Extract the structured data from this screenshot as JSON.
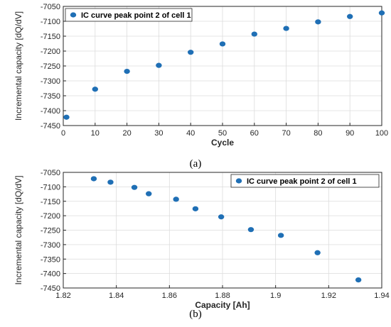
{
  "chart_data": [
    {
      "type": "scatter",
      "panel_caption": "(a)",
      "xlabel": "Cycle",
      "ylabel": "Incremental capacity [dQ/dV]",
      "xlim": [
        0,
        100
      ],
      "ylim": [
        -7450,
        -7050
      ],
      "xticks": [
        0,
        10,
        20,
        30,
        40,
        50,
        60,
        70,
        80,
        90,
        100
      ],
      "yticks": [
        -7050,
        -7100,
        -7150,
        -7200,
        -7250,
        -7300,
        -7350,
        -7400,
        -7450
      ],
      "grid": true,
      "legend_position": "top-left",
      "series": [
        {
          "name": "IC curve peak point 2 of cell 1",
          "color": "#1f6fb5",
          "x": [
            1,
            10,
            20,
            30,
            40,
            50,
            60,
            70,
            80,
            90,
            100
          ],
          "y": [
            -7422,
            -7328,
            -7268,
            -7248,
            -7204,
            -7176,
            -7143,
            -7124,
            -7102,
            -7084,
            -7072
          ]
        }
      ]
    },
    {
      "type": "scatter",
      "panel_caption": "(b)",
      "xlabel": "Capacity [Ah]",
      "ylabel": "Incremental capacity [dQ/dV]",
      "xlim": [
        1.82,
        1.94
      ],
      "ylim": [
        -7450,
        -7050
      ],
      "xticks": [
        1.82,
        1.84,
        1.86,
        1.88,
        1.9,
        1.92,
        1.94
      ],
      "yticks": [
        -7050,
        -7100,
        -7150,
        -7200,
        -7250,
        -7300,
        -7350,
        -7400,
        -7450
      ],
      "grid": true,
      "legend_position": "top-right",
      "series": [
        {
          "name": "IC curve peak point 2 of cell 1",
          "color": "#1f6fb5",
          "x": [
            1.8315,
            1.8378,
            1.8468,
            1.8522,
            1.8625,
            1.8698,
            1.8795,
            1.8907,
            1.902,
            1.9158,
            1.9312
          ],
          "y": [
            -7072,
            -7084,
            -7102,
            -7124,
            -7143,
            -7176,
            -7204,
            -7248,
            -7268,
            -7328,
            -7422
          ]
        }
      ]
    }
  ]
}
